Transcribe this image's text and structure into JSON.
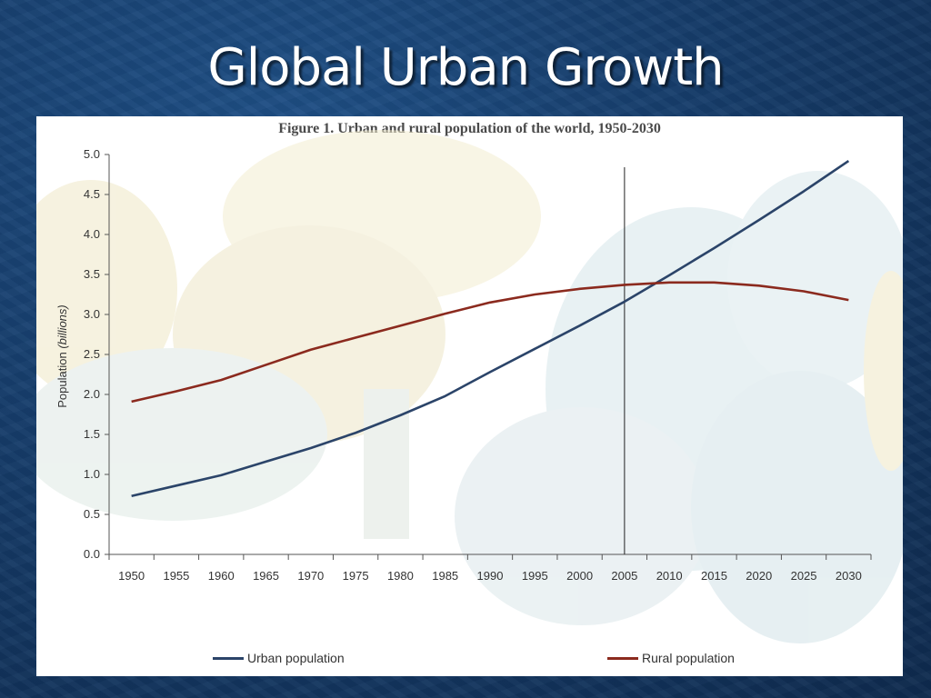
{
  "slide": {
    "title": "Global Urban Growth"
  },
  "colors": {
    "urban": "#2b4469",
    "rural": "#8b2a1e",
    "axis": "#555555"
  },
  "chart_data": {
    "type": "line",
    "title": "Figure 1. Urban and rural population of the world, 1950-2030",
    "ylabel_main": "Population",
    "ylabel_unit": "(billions)",
    "xlabel": "",
    "x": [
      1950,
      1955,
      1960,
      1965,
      1970,
      1975,
      1980,
      1985,
      1990,
      1995,
      2000,
      2005,
      2010,
      2015,
      2020,
      2025,
      2030
    ],
    "x_tick_labels": [
      "1950",
      "1955",
      "1960",
      "1965",
      "1970",
      "1975",
      "1980",
      "1985",
      "1990",
      "1995",
      "2000",
      "2005",
      "2010",
      "2015",
      "2020",
      "2025",
      "2030"
    ],
    "y_tick_labels": [
      "0.0",
      "0.5",
      "1.0",
      "1.5",
      "2.0",
      "2.5",
      "3.0",
      "3.5",
      "4.0",
      "4.5",
      "5.0"
    ],
    "ylim": [
      0,
      5
    ],
    "reference_line_x": 2005,
    "series": [
      {
        "name": "Urban population",
        "values": [
          0.73,
          0.86,
          0.99,
          1.16,
          1.33,
          1.52,
          1.74,
          1.98,
          2.28,
          2.57,
          2.86,
          3.16,
          3.49,
          3.83,
          4.18,
          4.54,
          4.92
        ]
      },
      {
        "name": "Rural population",
        "values": [
          1.91,
          2.04,
          2.18,
          2.37,
          2.56,
          2.71,
          2.86,
          3.01,
          3.15,
          3.25,
          3.32,
          3.37,
          3.4,
          3.4,
          3.36,
          3.29,
          3.18
        ]
      }
    ],
    "grid": false,
    "legend_position": "bottom"
  }
}
